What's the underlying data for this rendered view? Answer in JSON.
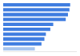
{
  "chart_data": {
    "type": "bar",
    "orientation": "horizontal",
    "categories": [
      null,
      null,
      null,
      null,
      null,
      null,
      null,
      null,
      null,
      null
    ],
    "values": [
      91,
      90,
      88,
      85,
      68,
      64,
      58,
      56,
      52,
      43
    ],
    "colors": [
      "#3f7de0",
      "#3f7de0",
      "#3f7de0",
      "#3f7de0",
      "#3f7de0",
      "#3f7de0",
      "#3f7de0",
      "#3f7de0",
      "#3f7de0",
      "#a9c6ef"
    ],
    "xlim": [
      0,
      100
    ],
    "grid": false,
    "tick_labels": false
  }
}
